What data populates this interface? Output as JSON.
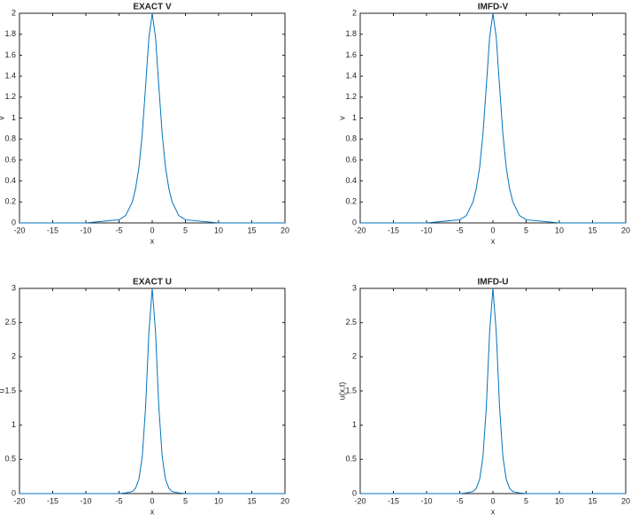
{
  "chart_data": [
    {
      "type": "line",
      "title": "EXACT V",
      "x_label": "x",
      "y_label": "v",
      "x": [
        -20,
        -15,
        -10,
        -5,
        -4,
        -3,
        -2.5,
        -2,
        -1.5,
        -1,
        -0.5,
        0,
        0.5,
        1,
        1.5,
        2,
        2.5,
        3,
        4,
        5,
        10,
        15,
        20
      ],
      "series": [
        {
          "name": "v",
          "color": "#0072bd",
          "values": [
            0,
            0,
            0,
            0.03,
            0.07,
            0.2,
            0.33,
            0.53,
            0.85,
            1.3,
            1.77,
            2,
            1.77,
            1.3,
            0.85,
            0.53,
            0.33,
            0.2,
            0.07,
            0.03,
            0,
            0,
            0
          ]
        }
      ],
      "xlim": [
        -20,
        20
      ],
      "xticks": [
        -20,
        -15,
        -10,
        -5,
        0,
        5,
        10,
        15,
        20
      ],
      "ylim": [
        0,
        2
      ],
      "yticks": [
        0,
        0.2,
        0.4,
        0.6,
        0.8,
        1,
        1.2,
        1.4,
        1.6,
        1.8,
        2
      ]
    },
    {
      "type": "line",
      "title": "IMFD-V",
      "x_label": "x",
      "y_label": "v",
      "x": [
        -20,
        -15,
        -10,
        -5,
        -4,
        -3,
        -2.5,
        -2,
        -1.5,
        -1,
        -0.5,
        0,
        0.5,
        1,
        1.5,
        2,
        2.5,
        3,
        4,
        5,
        10,
        15,
        20
      ],
      "series": [
        {
          "name": "v",
          "color": "#0072bd",
          "values": [
            0,
            0,
            0,
            0.03,
            0.07,
            0.2,
            0.33,
            0.53,
            0.85,
            1.3,
            1.77,
            2,
            1.77,
            1.3,
            0.85,
            0.53,
            0.33,
            0.2,
            0.07,
            0.03,
            0,
            0,
            0
          ]
        }
      ],
      "xlim": [
        -20,
        20
      ],
      "xticks": [
        -20,
        -15,
        -10,
        -5,
        0,
        5,
        10,
        15,
        20
      ],
      "ylim": [
        0,
        2
      ],
      "yticks": [
        0,
        0.2,
        0.4,
        0.6,
        0.8,
        1,
        1.2,
        1.4,
        1.6,
        1.8,
        2
      ]
    },
    {
      "type": "line",
      "title": "EXACT U",
      "x_label": "x",
      "y_label": "u",
      "x": [
        -20,
        -15,
        -10,
        -5,
        -4,
        -3,
        -2.5,
        -2,
        -1.5,
        -1,
        -0.5,
        0,
        0.5,
        1,
        1.5,
        2,
        2.5,
        3,
        4,
        5,
        10,
        15,
        20
      ],
      "series": [
        {
          "name": "u",
          "color": "#0072bd",
          "values": [
            0,
            0,
            0,
            0,
            0.01,
            0.03,
            0.08,
            0.21,
            0.54,
            1.26,
            2.36,
            3,
            2.36,
            1.26,
            0.54,
            0.21,
            0.08,
            0.03,
            0.01,
            0,
            0,
            0,
            0
          ]
        }
      ],
      "xlim": [
        -20,
        20
      ],
      "xticks": [
        -20,
        -15,
        -10,
        -5,
        0,
        5,
        10,
        15,
        20
      ],
      "ylim": [
        0,
        3
      ],
      "yticks": [
        0,
        0.5,
        1,
        1.5,
        2,
        2.5,
        3
      ]
    },
    {
      "type": "line",
      "title": "IMFD-U",
      "x_label": "x",
      "y_label": "u(x,t)",
      "x": [
        -20,
        -15,
        -10,
        -5,
        -4,
        -3,
        -2.5,
        -2,
        -1.5,
        -1,
        -0.5,
        0,
        0.5,
        1,
        1.5,
        2,
        2.5,
        3,
        4,
        5,
        10,
        15,
        20
      ],
      "series": [
        {
          "name": "u",
          "color": "#0072bd",
          "values": [
            0,
            0,
            0,
            0,
            0.01,
            0.03,
            0.08,
            0.21,
            0.54,
            1.26,
            2.36,
            3,
            2.36,
            1.26,
            0.54,
            0.21,
            0.08,
            0.03,
            0.01,
            0,
            0,
            0,
            0
          ]
        }
      ],
      "xlim": [
        -20,
        20
      ],
      "xticks": [
        -20,
        -15,
        -10,
        -5,
        0,
        5,
        10,
        15,
        20
      ],
      "ylim": [
        0,
        3
      ],
      "yticks": [
        0,
        0.5,
        1,
        1.5,
        2,
        2.5,
        3
      ]
    }
  ]
}
